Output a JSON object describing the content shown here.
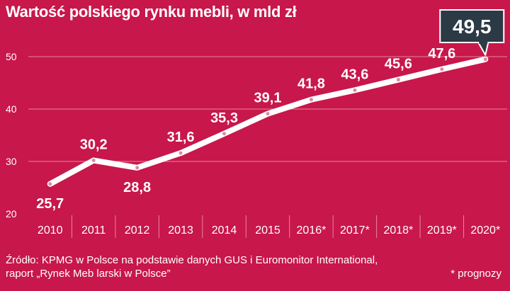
{
  "title": "Wartość polskiego rynku mebli, w mld zł",
  "colors": {
    "background": "#c8174a",
    "line": "#ffffff",
    "callout": "#2b3a44",
    "grid": "#e4879f"
  },
  "chart_data": {
    "type": "line",
    "title": "Wartość polskiego rynku mebli, w mld zł",
    "categories": [
      "2010",
      "2011",
      "2012",
      "2013",
      "2014",
      "2015",
      "2016*",
      "2017*",
      "2018*",
      "2019*",
      "2020*"
    ],
    "values": [
      25.7,
      30.2,
      28.8,
      31.6,
      35.3,
      39.1,
      41.8,
      43.6,
      45.6,
      47.6,
      49.5
    ],
    "value_labels": [
      "25,7",
      "30,2",
      "28,8",
      "31,6",
      "35,3",
      "39,1",
      "41,8",
      "43,6",
      "45,6",
      "47,6",
      "49,5"
    ],
    "ylim": [
      20,
      50
    ],
    "yticks": [
      20,
      30,
      40,
      50
    ],
    "grid": true,
    "highlight_index": 10
  },
  "source_line1": "Źródło: KPMG w Polsce na podstawie danych GUS i Euromonitor International,",
  "source_line2": "raport „Rynek Meb larski w Polsce”",
  "note": "* prognozy"
}
